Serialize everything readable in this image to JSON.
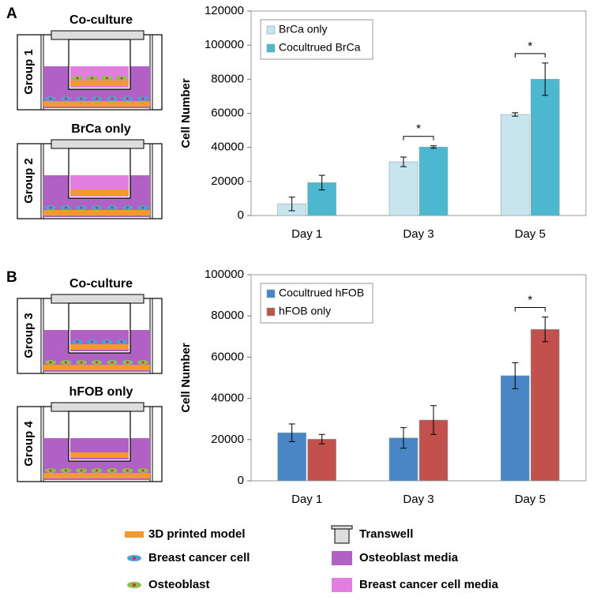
{
  "panel_labels": [
    "A",
    "B"
  ],
  "diagrams": [
    {
      "title": "Co-culture",
      "group": "Group 1"
    },
    {
      "title": "BrCa only",
      "group": "Group 2"
    },
    {
      "title": "Co-culture",
      "group": "Group 3"
    },
    {
      "title": "hFOB only",
      "group": "Group 4"
    }
  ],
  "key": [
    "3D printed model",
    "Breast cancer cell",
    "Osteoblast",
    "Transwell",
    "Osteoblast media",
    "Breast cancer cell media"
  ],
  "chart_data": [
    {
      "type": "bar",
      "ylabel": "Cell Number",
      "categories": [
        "Day 1",
        "Day 3",
        "Day 5"
      ],
      "series": [
        {
          "name": "BrCa only",
          "color": "#c8e5ee",
          "values": [
            6800,
            31500,
            59300
          ],
          "errors": [
            4000,
            2800,
            1000
          ]
        },
        {
          "name": "Cocultrued BrCa",
          "color": "#4cb7cf",
          "values": [
            19300,
            40200,
            80000
          ],
          "errors": [
            4300,
            700,
            9500
          ]
        }
      ],
      "ylim": [
        0,
        120000
      ],
      "yticks": [
        0,
        20000,
        40000,
        60000,
        80000,
        100000,
        120000
      ],
      "legend": "upper left",
      "significance": [
        {
          "category": "Day 3",
          "text": "*"
        },
        {
          "category": "Day 5",
          "text": "*"
        }
      ]
    },
    {
      "type": "bar",
      "ylabel": "Cell Number",
      "categories": [
        "Day 1",
        "Day 3",
        "Day 5"
      ],
      "series": [
        {
          "name": "Cocultrued hFOB",
          "color": "#4a86c6",
          "values": [
            23300,
            20800,
            51000
          ],
          "errors": [
            4300,
            5000,
            6300
          ]
        },
        {
          "name": "hFOB only",
          "color": "#c2504c",
          "values": [
            20200,
            29500,
            73500
          ],
          "errors": [
            2300,
            7000,
            6000
          ]
        }
      ],
      "ylim": [
        0,
        100000
      ],
      "yticks": [
        0,
        20000,
        40000,
        60000,
        80000,
        100000
      ],
      "legend": "upper left",
      "significance": [
        {
          "category": "Day 5",
          "text": "*"
        }
      ]
    }
  ]
}
